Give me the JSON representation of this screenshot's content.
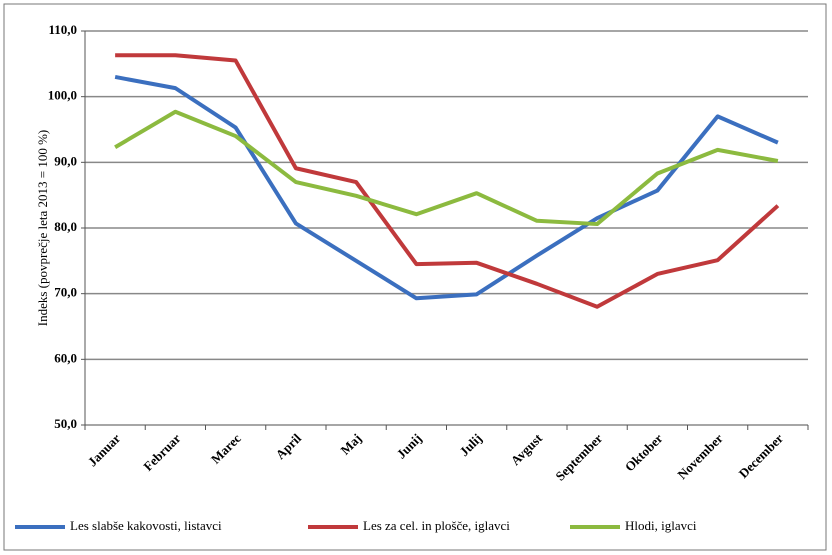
{
  "chart_data": {
    "type": "line",
    "y_label": "Indeks (povprečje leta 2013 = 100 %)",
    "categories": [
      "Januar",
      "Februar",
      "Marec",
      "April",
      "Maj",
      "Junij",
      "Julij",
      "Avgust",
      "September",
      "Oktober",
      "November",
      "December"
    ],
    "series": [
      {
        "name": "Les slabše kakovosti, listavci",
        "color": "#3b6fbf",
        "values": [
          103.0,
          101.3,
          95.3,
          80.7,
          75.0,
          69.3,
          69.9,
          75.8,
          81.5,
          85.7,
          97.0,
          93.0
        ]
      },
      {
        "name": "Les za cel. in plošče, iglavci",
        "color": "#c0393b",
        "values": [
          106.3,
          106.3,
          105.5,
          89.1,
          87.0,
          74.5,
          74.7,
          71.5,
          68.0,
          73.0,
          75.1,
          83.4
        ]
      },
      {
        "name": "Hlodi, iglavci",
        "color": "#8cba3f",
        "values": [
          92.3,
          97.7,
          94.0,
          87.0,
          84.9,
          82.1,
          85.3,
          81.1,
          80.6,
          88.3,
          91.9,
          90.2
        ]
      }
    ],
    "ylim": [
      50,
      110
    ],
    "yticks": [
      {
        "value": 50,
        "label": "50,0"
      },
      {
        "value": 60,
        "label": "60,0"
      },
      {
        "value": 70,
        "label": "70,0"
      },
      {
        "value": 80,
        "label": "80,0"
      },
      {
        "value": 90,
        "label": "90,0"
      },
      {
        "value": 100,
        "label": "100,0"
      },
      {
        "value": 110,
        "label": "110,0"
      }
    ],
    "grid": true
  }
}
